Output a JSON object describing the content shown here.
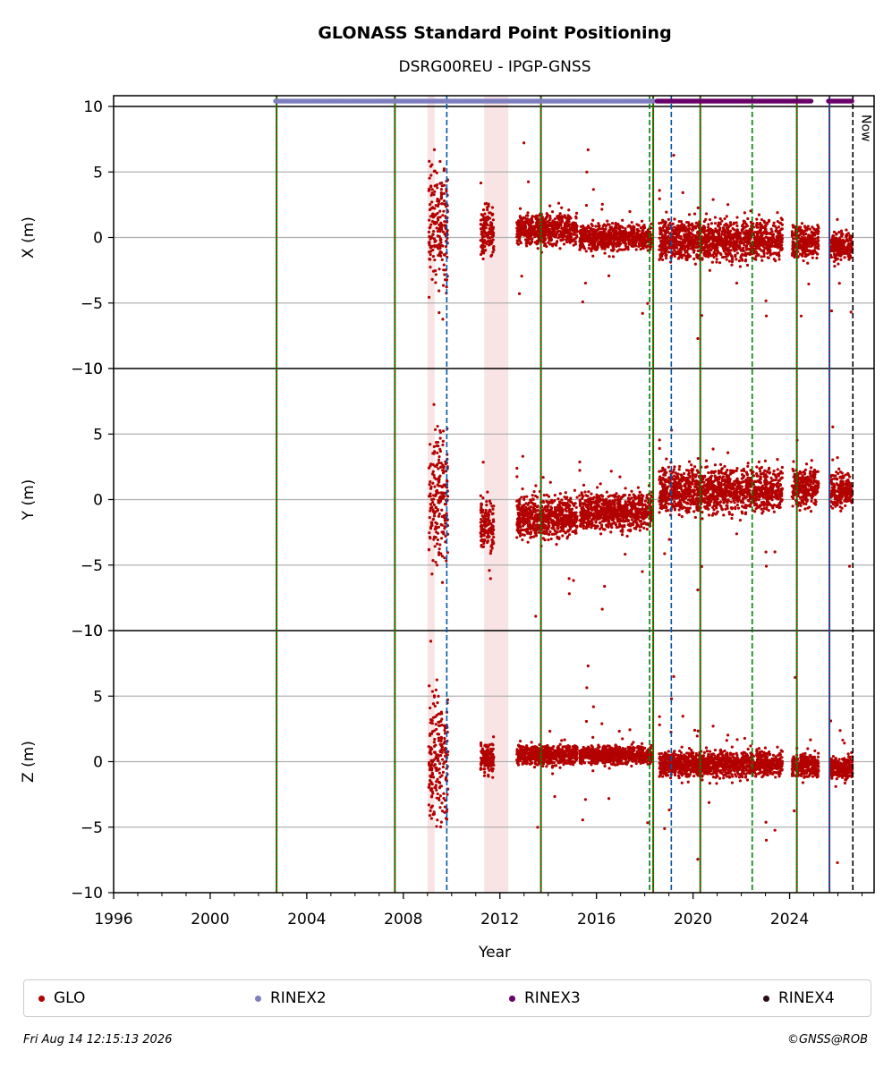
{
  "chart_data": {
    "type": "scatter",
    "title": "GLONASS Standard Point Positioning",
    "subtitle": "DSRG00REU - IPGP-GNSS",
    "xlabel": "Year",
    "xlim": [
      1996,
      2027.5
    ],
    "xticks": [
      "1996",
      "2000",
      "2004",
      "2008",
      "2012",
      "2016",
      "2020",
      "2024"
    ],
    "panels": [
      {
        "ylabel": "X (m)",
        "ylim": [
          -10,
          10
        ],
        "yticks": [
          "−10",
          "−5",
          "0",
          "5",
          "10"
        ]
      },
      {
        "ylabel": "Y (m)",
        "ylim": [
          -10,
          10
        ],
        "yticks": [
          "−10",
          "−5",
          "0",
          "5",
          "10"
        ]
      },
      {
        "ylabel": "Z (m)",
        "ylim": [
          -10,
          10
        ],
        "yticks": [
          "−10",
          "−5",
          "0",
          "5",
          "10"
        ]
      }
    ],
    "grid": "horizontal",
    "now_label": "Now",
    "now_year": 2026.62,
    "series": [
      {
        "name": "GLO",
        "color": "#b30000",
        "segments": [
          {
            "start": 2009.05,
            "end": 2009.85,
            "x_center": 1.0,
            "x_spread": 5.0,
            "y_center": 0.0,
            "y_spread": 5.5,
            "z_center": 0.0,
            "z_spread": 5.5
          },
          {
            "start": 2011.2,
            "end": 2011.75,
            "x_center": 0.5,
            "x_spread": 2.0,
            "y_center": -2.0,
            "y_spread": 2.2,
            "z_center": 0.3,
            "z_spread": 1.2
          },
          {
            "start": 2012.7,
            "end": 2015.2,
            "x_center": 0.6,
            "x_spread": 1.2,
            "y_center": -1.4,
            "y_spread": 1.6,
            "z_center": 0.5,
            "z_spread": 0.8
          },
          {
            "start": 2015.3,
            "end": 2018.3,
            "x_center": 0.0,
            "x_spread": 1.0,
            "y_center": -0.9,
            "y_spread": 1.5,
            "z_center": 0.5,
            "z_spread": 0.7
          },
          {
            "start": 2018.6,
            "end": 2023.7,
            "x_center": -0.2,
            "x_spread": 1.6,
            "y_center": 0.7,
            "y_spread": 1.8,
            "z_center": -0.2,
            "z_spread": 1.0
          },
          {
            "start": 2024.1,
            "end": 2025.2,
            "x_center": -0.3,
            "x_spread": 1.4,
            "y_center": 0.9,
            "y_spread": 1.5,
            "z_center": -0.3,
            "z_spread": 0.9
          },
          {
            "start": 2025.7,
            "end": 2026.6,
            "x_center": -0.7,
            "x_spread": 1.1,
            "y_center": 0.7,
            "y_spread": 1.3,
            "z_center": -0.5,
            "z_spread": 0.9
          }
        ]
      },
      {
        "name": "RINEX2",
        "color": "#7f7fbf",
        "ranges": [
          [
            2002.7,
            2018.4
          ]
        ]
      },
      {
        "name": "RINEX3",
        "color": "#6a006a",
        "ranges": [
          [
            2018.5,
            2024.9
          ],
          [
            2025.6,
            2026.6
          ]
        ]
      },
      {
        "name": "RINEX4",
        "color": "#2b0a18",
        "ranges": []
      }
    ],
    "event_lines": [
      {
        "year": 2002.75,
        "style": "green-red"
      },
      {
        "year": 2007.65,
        "style": "green-red"
      },
      {
        "year": 2009.8,
        "style": "blue-dash"
      },
      {
        "year": 2013.7,
        "style": "green-red"
      },
      {
        "year": 2018.2,
        "style": "green-dash"
      },
      {
        "year": 2018.35,
        "style": "green-red"
      },
      {
        "year": 2019.1,
        "style": "blue-dash"
      },
      {
        "year": 2020.3,
        "style": "green-red"
      },
      {
        "year": 2022.45,
        "style": "green-dash"
      },
      {
        "year": 2024.3,
        "style": "green-red"
      },
      {
        "year": 2025.65,
        "style": "blue-red"
      }
    ],
    "shaded_periods": [
      [
        2009.0,
        2009.3
      ],
      [
        2011.35,
        2012.35
      ]
    ]
  },
  "legend": [
    {
      "label": "GLO",
      "color": "#b30000"
    },
    {
      "label": "RINEX2",
      "color": "#7f7fbf"
    },
    {
      "label": "RINEX3",
      "color": "#6a006a"
    },
    {
      "label": "RINEX4",
      "color": "#2b0a18"
    }
  ],
  "footer": {
    "timestamp": "Fri Aug 14 12:15:13 2026",
    "copyright": "©GNSS@ROB"
  }
}
